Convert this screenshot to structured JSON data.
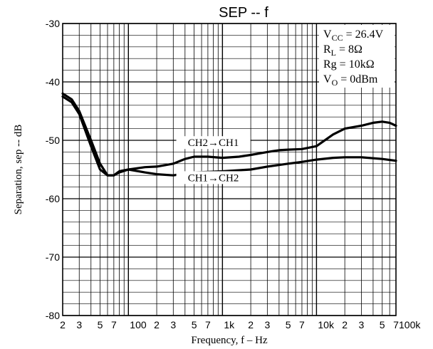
{
  "chart_data": {
    "type": "line",
    "title": "SEP -- f",
    "xlabel": "Frequency, f – Hz",
    "ylabel": "Separation, sep -- dB",
    "x_scale": "log",
    "xlim": [
      20,
      70000
    ],
    "ylim": [
      -80,
      -30
    ],
    "y_ticks": [
      -30,
      -40,
      -50,
      -60,
      -70,
      -80
    ],
    "y_tick_labels": [
      "-30",
      "-40",
      "-50",
      "-60",
      "-70",
      "-80"
    ],
    "x_tick_labels": [
      {
        "x": 20,
        "label": "2"
      },
      {
        "x": 30,
        "label": "3"
      },
      {
        "x": 50,
        "label": "5"
      },
      {
        "x": 70,
        "label": "7"
      },
      {
        "x": 100,
        "label": "100"
      },
      {
        "x": 200,
        "label": "2"
      },
      {
        "x": 300,
        "label": "3"
      },
      {
        "x": 500,
        "label": "5"
      },
      {
        "x": 700,
        "label": "7"
      },
      {
        "x": 1000,
        "label": "1k"
      },
      {
        "x": 2000,
        "label": "2"
      },
      {
        "x": 3000,
        "label": "3"
      },
      {
        "x": 5000,
        "label": "5"
      },
      {
        "x": 7000,
        "label": "7"
      },
      {
        "x": 10000,
        "label": "10k"
      },
      {
        "x": 20000,
        "label": "2"
      },
      {
        "x": 30000,
        "label": "3"
      },
      {
        "x": 50000,
        "label": "5"
      },
      {
        "x": 70000,
        "label": "7"
      },
      {
        "x": 100000,
        "label": "100k"
      }
    ],
    "grid": true,
    "series": [
      {
        "name": "CH2→CH1",
        "points": [
          [
            20,
            -42
          ],
          [
            25,
            -43
          ],
          [
            30,
            -45
          ],
          [
            40,
            -50
          ],
          [
            50,
            -54
          ],
          [
            60,
            -56
          ],
          [
            70,
            -56
          ],
          [
            80,
            -55.5
          ],
          [
            100,
            -55
          ],
          [
            150,
            -54.6
          ],
          [
            200,
            -54.5
          ],
          [
            300,
            -54
          ],
          [
            400,
            -53.2
          ],
          [
            500,
            -52.8
          ],
          [
            700,
            -52.8
          ],
          [
            1000,
            -53
          ],
          [
            1500,
            -52.8
          ],
          [
            2000,
            -52.5
          ],
          [
            3000,
            -52
          ],
          [
            4000,
            -51.7
          ],
          [
            5000,
            -51.6
          ],
          [
            7000,
            -51.5
          ],
          [
            10000,
            -51
          ],
          [
            15000,
            -49
          ],
          [
            20000,
            -48
          ],
          [
            30000,
            -47.5
          ],
          [
            40000,
            -47
          ],
          [
            50000,
            -46.8
          ],
          [
            60000,
            -47
          ],
          [
            70000,
            -47.5
          ]
        ]
      },
      {
        "name": "CH1→CH2",
        "points": [
          [
            20,
            -42.5
          ],
          [
            25,
            -43.5
          ],
          [
            30,
            -45.5
          ],
          [
            40,
            -51
          ],
          [
            50,
            -55
          ],
          [
            60,
            -56
          ],
          [
            70,
            -56
          ],
          [
            80,
            -55.3
          ],
          [
            100,
            -55
          ],
          [
            150,
            -55.5
          ],
          [
            200,
            -55.8
          ],
          [
            300,
            -56
          ],
          [
            400,
            -55.7
          ],
          [
            500,
            -55.5
          ],
          [
            700,
            -55.4
          ],
          [
            1000,
            -55.3
          ],
          [
            2000,
            -55
          ],
          [
            3000,
            -54.5
          ],
          [
            5000,
            -54
          ],
          [
            7000,
            -53.7
          ],
          [
            10000,
            -53.3
          ],
          [
            15000,
            -53
          ],
          [
            20000,
            -52.9
          ],
          [
            30000,
            -52.9
          ],
          [
            50000,
            -53.2
          ],
          [
            70000,
            -53.5
          ]
        ]
      }
    ],
    "annotation": {
      "lines": [
        {
          "main": "V",
          "sub": "CC",
          "rest": " = 26.4V"
        },
        {
          "main": "R",
          "sub": "L",
          "rest": " = 8Ω"
        },
        {
          "main": "Rg",
          "sub": "",
          "rest": " = 10kΩ"
        },
        {
          "main": "V",
          "sub": "O",
          "rest": " = 0dBm"
        }
      ]
    }
  }
}
